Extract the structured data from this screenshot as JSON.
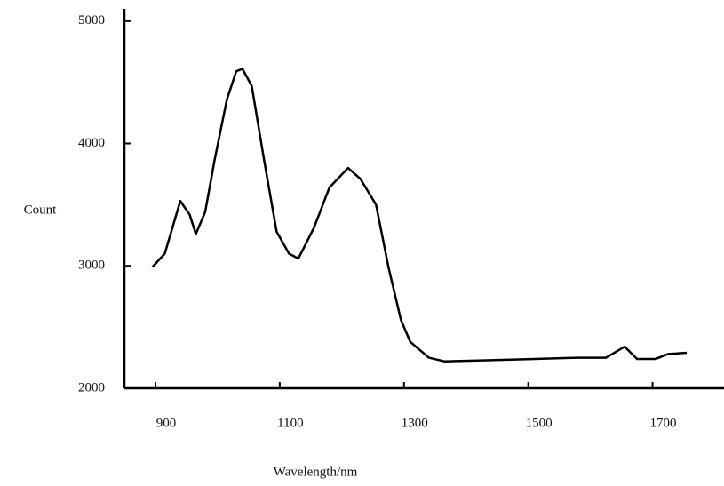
{
  "chart_data": {
    "type": "line",
    "x_label": "Wavelength/nm",
    "y_label": "Count",
    "x": [
      895,
      915,
      940,
      955,
      965,
      980,
      995,
      1015,
      1030,
      1040,
      1055,
      1075,
      1095,
      1115,
      1130,
      1155,
      1180,
      1210,
      1230,
      1255,
      1275,
      1295,
      1310,
      1340,
      1365,
      1440,
      1510,
      1580,
      1625,
      1655,
      1675,
      1705,
      1725,
      1755
    ],
    "series": [
      {
        "name": "Count",
        "color": "#000000",
        "values": [
          2990,
          3100,
          3530,
          3420,
          3260,
          3440,
          3860,
          4360,
          4590,
          4610,
          4470,
          3860,
          3280,
          3100,
          3060,
          3310,
          3640,
          3800,
          3710,
          3500,
          2990,
          2560,
          2380,
          2250,
          2220,
          2230,
          2240,
          2250,
          2250,
          2340,
          2240,
          2240,
          2280,
          2290
        ]
      }
    ],
    "xlim": [
      850,
      1815
    ],
    "xticks": [
      900,
      1100,
      1300,
      1500,
      1700
    ],
    "ylim": [
      2000,
      5100
    ],
    "yticks": [
      2000,
      3000,
      4000,
      5000
    ]
  }
}
